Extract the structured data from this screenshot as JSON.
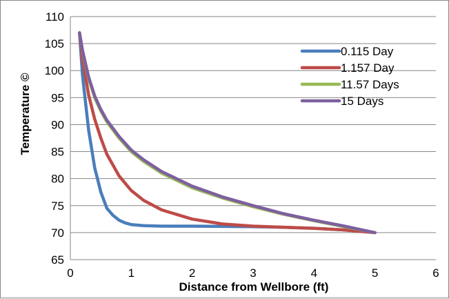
{
  "chart_data": {
    "type": "line",
    "xlabel": "Distance from Wellbore (ft)",
    "ylabel": "Temperature ©",
    "xlim": [
      0,
      6
    ],
    "ylim": [
      65,
      110
    ],
    "xticks": [
      0,
      1,
      2,
      3,
      4,
      5,
      6
    ],
    "yticks": [
      65,
      70,
      75,
      80,
      85,
      90,
      95,
      100,
      105,
      110
    ],
    "grid": "horizontal",
    "legend_position": "top-right",
    "series": [
      {
        "name": "0.115 Day",
        "color": "#4a7ebb",
        "x": [
          0.15,
          0.2,
          0.3,
          0.4,
          0.5,
          0.6,
          0.7,
          0.8,
          0.9,
          1.0,
          1.2,
          1.5,
          2.0,
          2.5,
          3.0,
          3.5,
          4.0,
          4.5,
          5.0
        ],
        "y": [
          107,
          99,
          89,
          82,
          77.5,
          74.5,
          73.2,
          72.3,
          71.8,
          71.5,
          71.3,
          71.2,
          71.2,
          71.15,
          71.1,
          71.0,
          70.8,
          70.5,
          70
        ]
      },
      {
        "name": "1.157 Day",
        "color": "#be4b48",
        "x": [
          0.15,
          0.2,
          0.3,
          0.4,
          0.5,
          0.6,
          0.8,
          1.0,
          1.2,
          1.5,
          2.0,
          2.5,
          3.0,
          3.5,
          4.0,
          4.5,
          5.0
        ],
        "y": [
          107,
          102,
          95.5,
          91,
          87.5,
          84.5,
          80.5,
          77.8,
          76,
          74.2,
          72.5,
          71.6,
          71.2,
          71.0,
          70.8,
          70.5,
          70
        ]
      },
      {
        "name": "11.57 Days",
        "color": "#98b954",
        "x": [
          0.15,
          0.2,
          0.3,
          0.4,
          0.5,
          0.6,
          0.8,
          1.0,
          1.2,
          1.5,
          2.0,
          2.5,
          3.0,
          3.5,
          4.0,
          4.5,
          5.0
        ],
        "y": [
          107,
          103.5,
          98.5,
          95,
          92.5,
          90.5,
          87.5,
          85,
          83.2,
          81,
          78.3,
          76.4,
          74.8,
          73.4,
          72.2,
          71.1,
          70
        ]
      },
      {
        "name": "15 Days",
        "color": "#7d60a0",
        "x": [
          0.15,
          0.2,
          0.3,
          0.4,
          0.5,
          0.6,
          0.8,
          1.0,
          1.2,
          1.5,
          2.0,
          2.5,
          3.0,
          3.5,
          4.0,
          4.5,
          5.0
        ],
        "y": [
          107,
          103.7,
          98.8,
          95.3,
          92.8,
          90.8,
          87.8,
          85.3,
          83.5,
          81.3,
          78.6,
          76.6,
          75.0,
          73.5,
          72.3,
          71.2,
          70
        ]
      }
    ]
  }
}
